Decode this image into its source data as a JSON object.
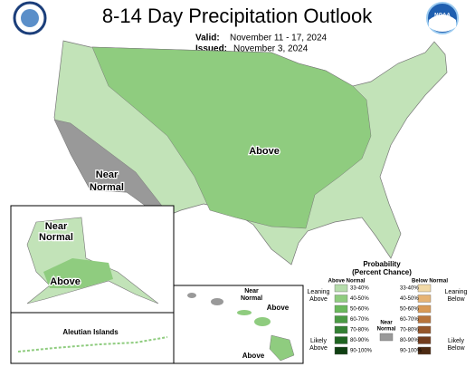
{
  "title": "8-14 Day Precipitation Outlook",
  "valid": {
    "label": "Valid:",
    "value": "November 11 - 17, 2024"
  },
  "issued": {
    "label": "Issued:",
    "value": "November 3, 2024"
  },
  "logo_right": "NOAA",
  "conus_labels": {
    "above": "Above",
    "near_normal": [
      "Near",
      "Normal"
    ]
  },
  "alaska_labels": {
    "near_normal": [
      "Near",
      "Normal"
    ],
    "above": "Above"
  },
  "aleutian": "Aleutian Islands",
  "hawaii_labels": {
    "near_normal": [
      "Near",
      "Normal"
    ],
    "above_1": "Above",
    "above_2": "Above"
  },
  "legend": {
    "title": "Probability",
    "subtitle": "(Percent Chance)",
    "above_heading": "Above Normal",
    "below_heading": "Below Normal",
    "leaning_above": [
      "Leaning",
      "Above"
    ],
    "likely_above": [
      "Likely",
      "Above"
    ],
    "near_normal": [
      "Near",
      "Normal"
    ],
    "leaning_below": [
      "Leaning",
      "Below"
    ],
    "likely_below": [
      "Likely",
      "Below"
    ],
    "above_bins": [
      "33-40%",
      "40-50%",
      "50-60%",
      "60-70%",
      "70-80%",
      "80-90%",
      "90-100%"
    ],
    "above_colors": [
      "#b5dcab",
      "#8fcc7f",
      "#6ab85c",
      "#4a9a44",
      "#338033",
      "#1f6421",
      "#0f3f12"
    ],
    "below_bins": [
      "33-40%",
      "40-50%",
      "50-60%",
      "60-70%",
      "70-80%",
      "80-90%",
      "90-100%"
    ],
    "below_colors": [
      "#f2d9a6",
      "#e6b374",
      "#d99a56",
      "#b8743b",
      "#96562a",
      "#733d1e",
      "#4d2a12"
    ],
    "near_color": "#999999"
  }
}
